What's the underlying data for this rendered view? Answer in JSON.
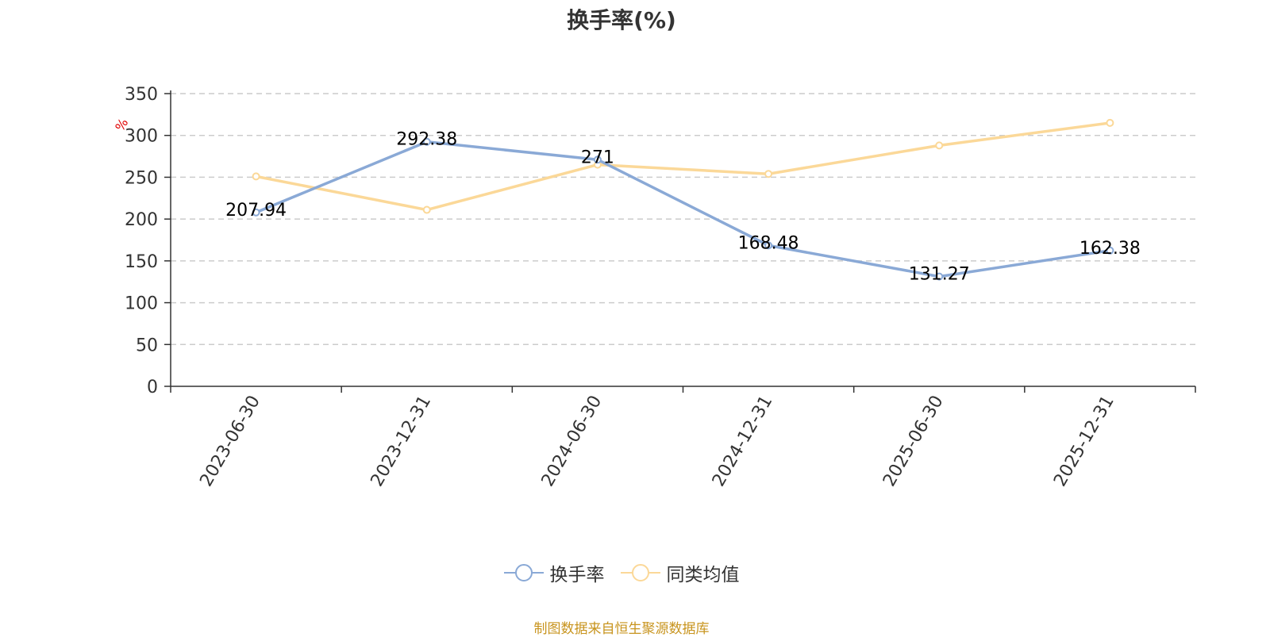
{
  "title": "换手率(%)",
  "source_note": "制图数据来自恒生聚源数据库",
  "colors": {
    "turnover": "#8aa9d6",
    "peer_avg": "#fbd898",
    "axis": "#333333",
    "grid": "#cccccc",
    "unit_label": "#e00000"
  },
  "legend": [
    {
      "label": "换手率",
      "color": "#8aa9d6",
      "icon": "circle-line-icon"
    },
    {
      "label": "同类均值",
      "color": "#fbd898",
      "icon": "circle-line-icon"
    }
  ],
  "chart_data": {
    "type": "line",
    "title": "换手率(%)",
    "ylabel": "%",
    "ylim": [
      0,
      350
    ],
    "yticks": [
      0,
      50,
      100,
      150,
      200,
      250,
      300,
      350
    ],
    "grid": true,
    "legend_position": "bottom",
    "categories": [
      "2023-06-30",
      "2023-12-31",
      "2024-06-30",
      "2024-12-31",
      "2025-06-30",
      "2025-12-31"
    ],
    "series": [
      {
        "name": "换手率",
        "values": [
          207.94,
          292.38,
          271,
          168.48,
          131.27,
          162.38
        ],
        "show_labels": true,
        "labels": [
          "207.94",
          "292.38",
          "271",
          "168.48",
          "131.27",
          "162.38"
        ]
      },
      {
        "name": "同类均值",
        "values": [
          251,
          211,
          265,
          254,
          288,
          315
        ],
        "show_labels": false
      }
    ]
  }
}
